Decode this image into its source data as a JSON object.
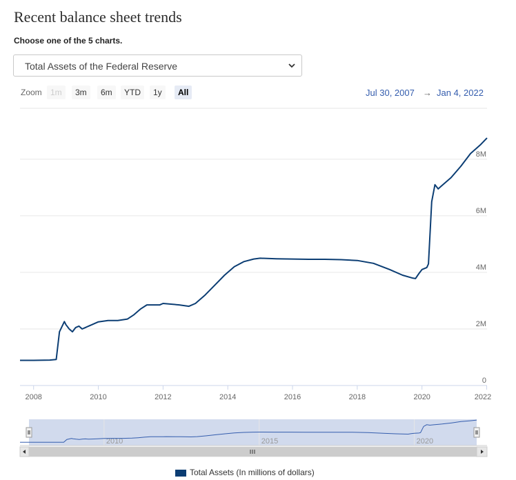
{
  "page": {
    "title": "Recent balance sheet trends",
    "subtitle": "Choose one of the 5 charts.",
    "select_value": "Total Assets of the Federal Reserve"
  },
  "zoom": {
    "label": "Zoom",
    "buttons": [
      "1m",
      "3m",
      "6m",
      "YTD",
      "1y",
      "All"
    ],
    "active": "All",
    "disabled": [
      "1m"
    ]
  },
  "range": {
    "from": "Jul 30, 2007",
    "arrow": "→",
    "to": "Jan 4, 2022"
  },
  "colors": {
    "series": "#0b3d73",
    "navigator_fill": "#ccd6eb",
    "navigator_line": "#335cad"
  },
  "chart_data": {
    "type": "line",
    "x_axis": {
      "tick_labels": [
        "2008",
        "2010",
        "2012",
        "2014",
        "2016",
        "2018",
        "2020",
        "2022"
      ],
      "range": [
        2007.58,
        2022.01
      ]
    },
    "y_axis": {
      "tick_labels": [
        "0",
        "2M",
        "4M",
        "6M",
        "8M"
      ],
      "ticks": [
        0,
        2,
        4,
        6,
        8
      ],
      "range": [
        0,
        9.8
      ],
      "unit": "millions of millions"
    },
    "navigator": {
      "tick_labels": [
        "2010",
        "2015",
        "2020"
      ],
      "ticks": [
        2010,
        2015,
        2020
      ]
    },
    "grid": true,
    "legend_position": "bottom",
    "series": [
      {
        "name": "Total Assets (In millions of dollars)",
        "x": [
          2007.58,
          2008.0,
          2008.5,
          2008.7,
          2008.8,
          2008.95,
          2009.0,
          2009.1,
          2009.2,
          2009.3,
          2009.4,
          2009.5,
          2009.6,
          2009.8,
          2010.0,
          2010.3,
          2010.6,
          2010.9,
          2011.1,
          2011.3,
          2011.5,
          2011.9,
          2012.0,
          2012.5,
          2012.8,
          2013.0,
          2013.3,
          2013.6,
          2013.9,
          2014.2,
          2014.5,
          2014.8,
          2015.0,
          2015.5,
          2016.0,
          2016.5,
          2017.0,
          2017.5,
          2018.0,
          2018.5,
          2019.0,
          2019.4,
          2019.7,
          2019.8,
          2019.9,
          2020.0,
          2020.15,
          2020.2,
          2020.3,
          2020.4,
          2020.5,
          2020.6,
          2020.9,
          2021.2,
          2021.5,
          2021.8,
          2022.01
        ],
        "y": [
          0.89,
          0.89,
          0.9,
          0.92,
          1.9,
          2.26,
          2.15,
          2.0,
          1.9,
          2.05,
          2.1,
          2.0,
          2.05,
          2.15,
          2.25,
          2.3,
          2.3,
          2.35,
          2.5,
          2.7,
          2.85,
          2.85,
          2.9,
          2.85,
          2.8,
          2.9,
          3.2,
          3.55,
          3.9,
          4.2,
          4.38,
          4.47,
          4.5,
          4.48,
          4.47,
          4.46,
          4.46,
          4.45,
          4.42,
          4.32,
          4.1,
          3.9,
          3.8,
          3.78,
          3.95,
          4.1,
          4.17,
          4.3,
          6.5,
          7.1,
          6.95,
          7.05,
          7.35,
          7.75,
          8.2,
          8.5,
          8.75
        ]
      }
    ]
  }
}
